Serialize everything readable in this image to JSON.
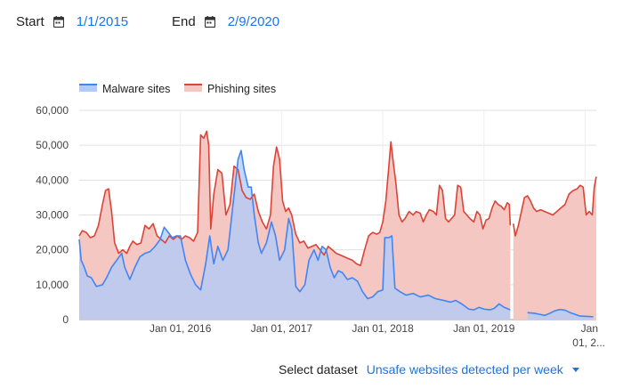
{
  "controls": {
    "start_label": "Start",
    "start_value": "1/1/2015",
    "end_label": "End",
    "end_value": "2/9/2020",
    "calendar_icon": "calendar-icon",
    "accent_color": "#1a73e8"
  },
  "footer": {
    "select_label": "Select dataset",
    "selected_dataset": "Unsafe websites detected per week",
    "caret_icon": "caret-down-icon"
  },
  "chart_data": {
    "type": "area",
    "x_start": "2015-01-01",
    "x_end": "2020-02-09",
    "x_unit": "year",
    "x_ticks": [
      {
        "value": 2016.0,
        "label": "Jan 01, 2016"
      },
      {
        "value": 2017.0,
        "label": "Jan 01, 2017"
      },
      {
        "value": 2018.0,
        "label": "Jan 01, 2018"
      },
      {
        "value": 2019.0,
        "label": "Jan 01, 2019"
      },
      {
        "value": 2020.0,
        "label": "Jan 01, 2..."
      }
    ],
    "ylim": [
      0,
      60000
    ],
    "y_ticks": [
      0,
      10000,
      20000,
      30000,
      40000,
      50000,
      60000
    ],
    "y_tick_labels": [
      "0",
      "10,000",
      "20,000",
      "30,000",
      "40,000",
      "50,000",
      "60,000"
    ],
    "grid": true,
    "legend_position": "top-left",
    "series": [
      {
        "name": "Malware sites",
        "color": "#4285f4",
        "fill": "#aecbfa",
        "segments": [
          [
            [
              2015.0,
              23000
            ],
            [
              2015.02,
              17000
            ],
            [
              2015.05,
              15000
            ],
            [
              2015.08,
              12500
            ],
            [
              2015.12,
              12000
            ],
            [
              2015.17,
              9500
            ],
            [
              2015.23,
              10000
            ],
            [
              2015.27,
              12000
            ],
            [
              2015.32,
              15000
            ],
            [
              2015.37,
              17000
            ],
            [
              2015.42,
              19000
            ],
            [
              2015.45,
              15000
            ],
            [
              2015.5,
              11500
            ],
            [
              2015.55,
              15000
            ],
            [
              2015.6,
              18000
            ],
            [
              2015.65,
              19000
            ],
            [
              2015.7,
              19500
            ],
            [
              2015.75,
              21000
            ],
            [
              2015.8,
              23000
            ],
            [
              2015.84,
              26500
            ],
            [
              2015.88,
              25000
            ],
            [
              2015.92,
              23500
            ],
            [
              2015.96,
              24000
            ],
            [
              2016.0,
              24000
            ],
            [
              2016.05,
              17000
            ],
            [
              2016.1,
              13000
            ],
            [
              2016.15,
              10000
            ],
            [
              2016.2,
              8500
            ],
            [
              2016.25,
              16000
            ],
            [
              2016.29,
              24000
            ],
            [
              2016.33,
              16000
            ],
            [
              2016.37,
              21000
            ],
            [
              2016.42,
              17000
            ],
            [
              2016.47,
              20000
            ],
            [
              2016.52,
              33000
            ],
            [
              2016.57,
              46000
            ],
            [
              2016.6,
              48500
            ],
            [
              2016.63,
              43000
            ],
            [
              2016.67,
              38000
            ],
            [
              2016.7,
              38000
            ],
            [
              2016.73,
              30000
            ],
            [
              2016.77,
              22000
            ],
            [
              2016.8,
              19000
            ],
            [
              2016.85,
              22000
            ],
            [
              2016.9,
              28000
            ],
            [
              2016.94,
              24000
            ],
            [
              2016.98,
              17000
            ],
            [
              2017.03,
              20000
            ],
            [
              2017.07,
              29000
            ],
            [
              2017.1,
              26000
            ],
            [
              2017.14,
              9500
            ],
            [
              2017.18,
              8000
            ],
            [
              2017.23,
              10000
            ],
            [
              2017.27,
              17000
            ],
            [
              2017.32,
              20000
            ],
            [
              2017.36,
              17000
            ],
            [
              2017.4,
              21000
            ],
            [
              2017.44,
              20000
            ],
            [
              2017.48,
              15000
            ],
            [
              2017.52,
              12000
            ],
            [
              2017.56,
              14000
            ],
            [
              2017.6,
              13500
            ],
            [
              2017.65,
              11500
            ],
            [
              2017.7,
              12000
            ],
            [
              2017.75,
              11000
            ],
            [
              2017.8,
              8000
            ],
            [
              2017.85,
              6000
            ],
            [
              2017.9,
              6500
            ],
            [
              2017.95,
              8000
            ],
            [
              2018.0,
              8500
            ],
            [
              2018.02,
              23500
            ],
            [
              2018.06,
              23500
            ],
            [
              2018.09,
              24000
            ],
            [
              2018.12,
              9000
            ],
            [
              2018.17,
              8000
            ],
            [
              2018.23,
              7000
            ],
            [
              2018.3,
              7500
            ],
            [
              2018.37,
              6500
            ],
            [
              2018.45,
              7000
            ],
            [
              2018.52,
              6000
            ],
            [
              2018.6,
              5500
            ],
            [
              2018.67,
              5000
            ],
            [
              2018.72,
              5500
            ],
            [
              2018.78,
              4500
            ],
            [
              2018.85,
              3000
            ],
            [
              2018.9,
              2800
            ],
            [
              2018.95,
              3500
            ],
            [
              2019.0,
              3000
            ],
            [
              2019.06,
              2800
            ],
            [
              2019.1,
              3200
            ],
            [
              2019.15,
              4500
            ],
            [
              2019.2,
              3500
            ],
            [
              2019.26,
              2800
            ]
          ],
          [
            [
              2019.43,
              2000
            ],
            [
              2019.5,
              1800
            ],
            [
              2019.55,
              1500
            ],
            [
              2019.6,
              1200
            ],
            [
              2019.65,
              1800
            ],
            [
              2019.7,
              2500
            ],
            [
              2019.75,
              2900
            ],
            [
              2019.8,
              2700
            ],
            [
              2019.85,
              2000
            ],
            [
              2019.9,
              1500
            ],
            [
              2019.95,
              1000
            ],
            [
              2020.02,
              900
            ],
            [
              2020.08,
              800
            ]
          ]
        ]
      },
      {
        "name": "Phishing sites",
        "color": "#db4437",
        "fill": "#f4c7c3",
        "segments": [
          [
            [
              2015.0,
              24000
            ],
            [
              2015.03,
              25500
            ],
            [
              2015.07,
              25000
            ],
            [
              2015.11,
              23500
            ],
            [
              2015.15,
              24000
            ],
            [
              2015.19,
              27000
            ],
            [
              2015.23,
              33000
            ],
            [
              2015.26,
              37000
            ],
            [
              2015.29,
              37500
            ],
            [
              2015.32,
              31000
            ],
            [
              2015.35,
              22000
            ],
            [
              2015.39,
              19000
            ],
            [
              2015.43,
              20000
            ],
            [
              2015.47,
              19000
            ],
            [
              2015.5,
              21000
            ],
            [
              2015.53,
              22500
            ],
            [
              2015.57,
              21500
            ],
            [
              2015.61,
              22000
            ],
            [
              2015.65,
              27000
            ],
            [
              2015.69,
              26000
            ],
            [
              2015.73,
              27500
            ],
            [
              2015.77,
              24000
            ],
            [
              2015.81,
              23000
            ],
            [
              2015.85,
              22000
            ],
            [
              2015.89,
              24000
            ],
            [
              2015.93,
              23000
            ],
            [
              2015.97,
              24000
            ],
            [
              2016.01,
              23000
            ],
            [
              2016.05,
              24000
            ],
            [
              2016.09,
              23500
            ],
            [
              2016.13,
              22500
            ],
            [
              2016.17,
              25000
            ],
            [
              2016.2,
              53000
            ],
            [
              2016.23,
              52000
            ],
            [
              2016.26,
              54000
            ],
            [
              2016.28,
              50000
            ],
            [
              2016.3,
              26000
            ],
            [
              2016.33,
              36000
            ],
            [
              2016.37,
              43000
            ],
            [
              2016.41,
              42000
            ],
            [
              2016.45,
              30000
            ],
            [
              2016.49,
              33000
            ],
            [
              2016.53,
              44000
            ],
            [
              2016.57,
              43000
            ],
            [
              2016.61,
              37000
            ],
            [
              2016.65,
              35000
            ],
            [
              2016.69,
              34500
            ],
            [
              2016.73,
              36000
            ],
            [
              2016.77,
              31000
            ],
            [
              2016.81,
              28000
            ],
            [
              2016.85,
              26000
            ],
            [
              2016.89,
              30000
            ],
            [
              2016.92,
              44000
            ],
            [
              2016.95,
              49500
            ],
            [
              2016.98,
              46000
            ],
            [
              2017.01,
              34000
            ],
            [
              2017.04,
              31000
            ],
            [
              2017.07,
              32000
            ],
            [
              2017.1,
              30000
            ],
            [
              2017.14,
              24500
            ],
            [
              2017.18,
              22000
            ],
            [
              2017.22,
              22500
            ],
            [
              2017.26,
              20500
            ],
            [
              2017.3,
              21000
            ],
            [
              2017.34,
              21500
            ],
            [
              2017.38,
              20000
            ],
            [
              2017.42,
              18500
            ],
            [
              2017.46,
              21000
            ],
            [
              2017.5,
              20000
            ],
            [
              2017.54,
              19000
            ],
            [
              2017.58,
              18500
            ],
            [
              2017.62,
              18000
            ],
            [
              2017.66,
              17500
            ],
            [
              2017.7,
              17000
            ],
            [
              2017.74,
              16000
            ],
            [
              2017.78,
              15500
            ],
            [
              2017.82,
              20000
            ],
            [
              2017.86,
              24000
            ],
            [
              2017.9,
              25000
            ],
            [
              2017.94,
              24500
            ],
            [
              2017.97,
              25000
            ],
            [
              2018.0,
              28000
            ],
            [
              2018.03,
              34000
            ],
            [
              2018.06,
              44000
            ],
            [
              2018.08,
              51000
            ],
            [
              2018.1,
              46000
            ],
            [
              2018.13,
              39000
            ],
            [
              2018.16,
              30000
            ],
            [
              2018.19,
              28000
            ],
            [
              2018.22,
              29000
            ],
            [
              2018.26,
              31000
            ],
            [
              2018.3,
              30000
            ],
            [
              2018.33,
              31000
            ],
            [
              2018.37,
              30500
            ],
            [
              2018.4,
              28000
            ],
            [
              2018.43,
              30000
            ],
            [
              2018.46,
              31500
            ],
            [
              2018.5,
              31000
            ],
            [
              2018.53,
              30000
            ],
            [
              2018.56,
              38500
            ],
            [
              2018.59,
              37000
            ],
            [
              2018.62,
              29000
            ],
            [
              2018.65,
              28000
            ],
            [
              2018.68,
              29000
            ],
            [
              2018.71,
              30000
            ],
            [
              2018.74,
              38500
            ],
            [
              2018.77,
              38000
            ],
            [
              2018.8,
              31000
            ],
            [
              2018.83,
              30000
            ],
            [
              2018.86,
              29000
            ],
            [
              2018.9,
              28000
            ],
            [
              2018.93,
              31000
            ],
            [
              2018.96,
              30000
            ],
            [
              2018.99,
              26000
            ],
            [
              2019.02,
              28500
            ],
            [
              2019.05,
              29000
            ],
            [
              2019.08,
              32000
            ],
            [
              2019.11,
              34000
            ],
            [
              2019.14,
              33000
            ],
            [
              2019.17,
              32500
            ],
            [
              2019.2,
              31500
            ],
            [
              2019.23,
              33500
            ],
            [
              2019.25,
              33000
            ],
            [
              2019.26,
              27000
            ]
          ],
          [
            [
              2019.29,
              27500
            ],
            [
              2019.31,
              24000
            ],
            [
              2019.34,
              27000
            ],
            [
              2019.37,
              31000
            ],
            [
              2019.4,
              35000
            ],
            [
              2019.43,
              35500
            ],
            [
              2019.46,
              34000
            ],
            [
              2019.49,
              32000
            ],
            [
              2019.52,
              31000
            ],
            [
              2019.56,
              31500
            ],
            [
              2019.6,
              31000
            ],
            [
              2019.64,
              30500
            ],
            [
              2019.68,
              30000
            ],
            [
              2019.72,
              31000
            ],
            [
              2019.76,
              32000
            ],
            [
              2019.8,
              33000
            ],
            [
              2019.84,
              36000
            ],
            [
              2019.88,
              37000
            ],
            [
              2019.92,
              37500
            ],
            [
              2019.95,
              38500
            ],
            [
              2019.98,
              38000
            ],
            [
              2020.01,
              30000
            ],
            [
              2020.04,
              31000
            ],
            [
              2020.07,
              30000
            ],
            [
              2020.09,
              38000
            ],
            [
              2020.11,
              41000
            ]
          ]
        ]
      }
    ]
  }
}
